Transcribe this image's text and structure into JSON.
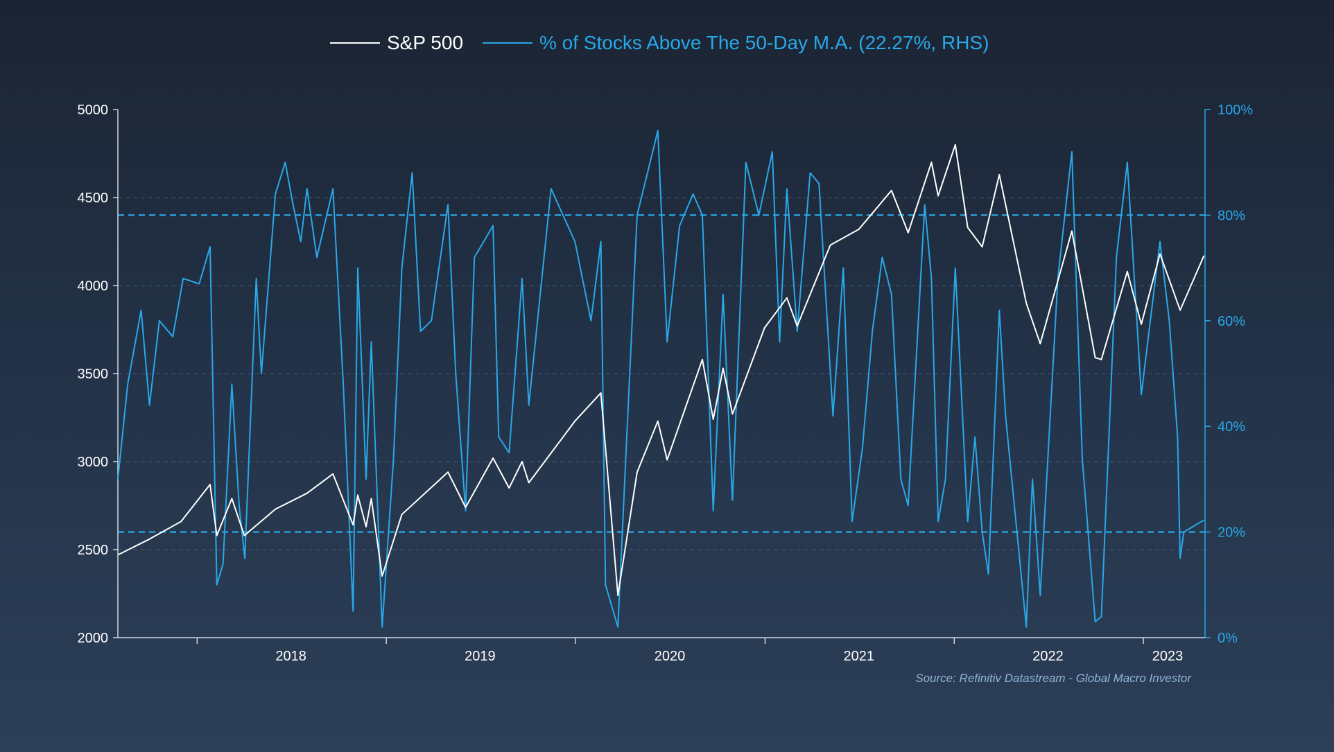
{
  "chart_data": {
    "type": "line",
    "legend": [
      {
        "name": "S&P 500",
        "color": "#ffffff"
      },
      {
        "name": "% of Stocks Above The 50-Day M.A. (22.27%, RHS)",
        "color": "#29a8e8"
      }
    ],
    "legend_position": "top-center",
    "y_left": {
      "range": [
        2000,
        5000
      ],
      "ticks": [
        "5000",
        "4500",
        "4000",
        "3500",
        "3000",
        "2500",
        "2000"
      ]
    },
    "y_right": {
      "range": [
        0,
        100
      ],
      "ticks": [
        "100%",
        "80%",
        "60%",
        "40%",
        "20%",
        "0%"
      ]
    },
    "x_labels": [
      "2018",
      "2019",
      "2020",
      "2021",
      "2022",
      "2023"
    ],
    "x_range": [
      "2017-08-01",
      "2023-04-30"
    ],
    "grid": "horizontal dashed",
    "reference_lines_right": [
      80,
      20
    ],
    "source": "Source: Refinitiv Datastream - Global Macro Investor",
    "series": [
      {
        "name": "S&P 500",
        "axis": "left",
        "color": "#ffffff",
        "points": [
          [
            "2017-08-01",
            2470
          ],
          [
            "2017-10-01",
            2560
          ],
          [
            "2017-12-01",
            2660
          ],
          [
            "2018-01-26",
            2870
          ],
          [
            "2018-02-08",
            2580
          ],
          [
            "2018-03-09",
            2790
          ],
          [
            "2018-04-02",
            2580
          ],
          [
            "2018-06-01",
            2730
          ],
          [
            "2018-08-01",
            2820
          ],
          [
            "2018-09-20",
            2930
          ],
          [
            "2018-10-29",
            2640
          ],
          [
            "2018-11-07",
            2810
          ],
          [
            "2018-11-23",
            2630
          ],
          [
            "2018-12-03",
            2790
          ],
          [
            "2018-12-24",
            2350
          ],
          [
            "2019-01-31",
            2700
          ],
          [
            "2019-04-30",
            2940
          ],
          [
            "2019-06-03",
            2740
          ],
          [
            "2019-07-26",
            3020
          ],
          [
            "2019-08-26",
            2850
          ],
          [
            "2019-09-20",
            3000
          ],
          [
            "2019-10-03",
            2880
          ],
          [
            "2019-12-31",
            3230
          ],
          [
            "2020-02-19",
            3390
          ],
          [
            "2020-03-23",
            2240
          ],
          [
            "2020-04-29",
            2940
          ],
          [
            "2020-06-08",
            3230
          ],
          [
            "2020-06-26",
            3010
          ],
          [
            "2020-09-02",
            3580
          ],
          [
            "2020-09-23",
            3240
          ],
          [
            "2020-10-12",
            3530
          ],
          [
            "2020-10-30",
            3270
          ],
          [
            "2020-12-31",
            3760
          ],
          [
            "2021-02-12",
            3930
          ],
          [
            "2021-03-04",
            3770
          ],
          [
            "2021-05-07",
            4230
          ],
          [
            "2021-07-01",
            4320
          ],
          [
            "2021-09-02",
            4540
          ],
          [
            "2021-10-04",
            4300
          ],
          [
            "2021-11-18",
            4700
          ],
          [
            "2021-12-01",
            4510
          ],
          [
            "2022-01-03",
            4800
          ],
          [
            "2022-01-27",
            4330
          ],
          [
            "2022-02-24",
            4220
          ],
          [
            "2022-03-29",
            4630
          ],
          [
            "2022-05-20",
            3900
          ],
          [
            "2022-06-16",
            3670
          ],
          [
            "2022-08-16",
            4310
          ],
          [
            "2022-09-30",
            3590
          ],
          [
            "2022-10-12",
            3580
          ],
          [
            "2022-12-01",
            4080
          ],
          [
            "2022-12-28",
            3780
          ],
          [
            "2023-02-02",
            4180
          ],
          [
            "2023-03-13",
            3860
          ],
          [
            "2023-04-28",
            4170
          ]
        ]
      },
      {
        "name": "% of Stocks Above The 50-Day M.A.",
        "axis": "right",
        "color": "#29a8e8",
        "points": [
          [
            "2017-08-01",
            30
          ],
          [
            "2017-08-20",
            48
          ],
          [
            "2017-09-15",
            62
          ],
          [
            "2017-10-01",
            44
          ],
          [
            "2017-10-20",
            60
          ],
          [
            "2017-11-15",
            57
          ],
          [
            "2017-12-05",
            68
          ],
          [
            "2018-01-05",
            67
          ],
          [
            "2018-01-26",
            74
          ],
          [
            "2018-02-08",
            10
          ],
          [
            "2018-02-20",
            14
          ],
          [
            "2018-03-09",
            48
          ],
          [
            "2018-03-23",
            25
          ],
          [
            "2018-04-03",
            15
          ],
          [
            "2018-04-25",
            68
          ],
          [
            "2018-05-05",
            50
          ],
          [
            "2018-06-01",
            84
          ],
          [
            "2018-06-20",
            90
          ],
          [
            "2018-07-05",
            82
          ],
          [
            "2018-07-20",
            75
          ],
          [
            "2018-08-01",
            85
          ],
          [
            "2018-08-20",
            72
          ],
          [
            "2018-09-20",
            85
          ],
          [
            "2018-10-10",
            48
          ],
          [
            "2018-10-29",
            5
          ],
          [
            "2018-11-07",
            70
          ],
          [
            "2018-11-23",
            30
          ],
          [
            "2018-12-03",
            56
          ],
          [
            "2018-12-24",
            2
          ],
          [
            "2019-01-15",
            34
          ],
          [
            "2019-01-31",
            70
          ],
          [
            "2019-02-20",
            88
          ],
          [
            "2019-03-08",
            58
          ],
          [
            "2019-03-29",
            60
          ],
          [
            "2019-04-30",
            82
          ],
          [
            "2019-05-15",
            50
          ],
          [
            "2019-06-03",
            24
          ],
          [
            "2019-06-20",
            72
          ],
          [
            "2019-07-26",
            78
          ],
          [
            "2019-08-06",
            38
          ],
          [
            "2019-08-26",
            35
          ],
          [
            "2019-09-20",
            68
          ],
          [
            "2019-10-03",
            44
          ],
          [
            "2019-11-15",
            85
          ],
          [
            "2019-12-31",
            75
          ],
          [
            "2020-01-31",
            60
          ],
          [
            "2020-02-19",
            75
          ],
          [
            "2020-02-28",
            10
          ],
          [
            "2020-03-23",
            2
          ],
          [
            "2020-04-29",
            80
          ],
          [
            "2020-06-08",
            96
          ],
          [
            "2020-06-26",
            56
          ],
          [
            "2020-07-20",
            78
          ],
          [
            "2020-08-15",
            84
          ],
          [
            "2020-09-02",
            80
          ],
          [
            "2020-09-23",
            24
          ],
          [
            "2020-10-12",
            65
          ],
          [
            "2020-10-30",
            26
          ],
          [
            "2020-11-25",
            90
          ],
          [
            "2020-12-20",
            80
          ],
          [
            "2021-01-15",
            92
          ],
          [
            "2021-01-29",
            56
          ],
          [
            "2021-02-12",
            85
          ],
          [
            "2021-03-04",
            58
          ],
          [
            "2021-03-29",
            88
          ],
          [
            "2021-04-15",
            86
          ],
          [
            "2021-05-12",
            42
          ],
          [
            "2021-06-01",
            70
          ],
          [
            "2021-06-18",
            22
          ],
          [
            "2021-07-08",
            36
          ],
          [
            "2021-07-27",
            58
          ],
          [
            "2021-08-15",
            72
          ],
          [
            "2021-09-02",
            65
          ],
          [
            "2021-09-20",
            30
          ],
          [
            "2021-10-04",
            25
          ],
          [
            "2021-11-05",
            82
          ],
          [
            "2021-11-18",
            68
          ],
          [
            "2021-12-01",
            22
          ],
          [
            "2021-12-15",
            30
          ],
          [
            "2022-01-03",
            70
          ],
          [
            "2022-01-27",
            22
          ],
          [
            "2022-02-10",
            38
          ],
          [
            "2022-02-24",
            20
          ],
          [
            "2022-03-08",
            12
          ],
          [
            "2022-03-29",
            62
          ],
          [
            "2022-04-10",
            42
          ],
          [
            "2022-05-20",
            2
          ],
          [
            "2022-06-01",
            30
          ],
          [
            "2022-06-16",
            8
          ],
          [
            "2022-07-20",
            68
          ],
          [
            "2022-08-16",
            92
          ],
          [
            "2022-09-05",
            34
          ],
          [
            "2022-09-30",
            3
          ],
          [
            "2022-10-12",
            4
          ],
          [
            "2022-11-10",
            72
          ],
          [
            "2022-12-01",
            90
          ],
          [
            "2022-12-28",
            46
          ],
          [
            "2023-02-02",
            75
          ],
          [
            "2023-02-20",
            60
          ],
          [
            "2023-03-08",
            38
          ],
          [
            "2023-03-13",
            15
          ],
          [
            "2023-03-20",
            20
          ],
          [
            "2023-04-28",
            22.27
          ]
        ]
      }
    ]
  }
}
